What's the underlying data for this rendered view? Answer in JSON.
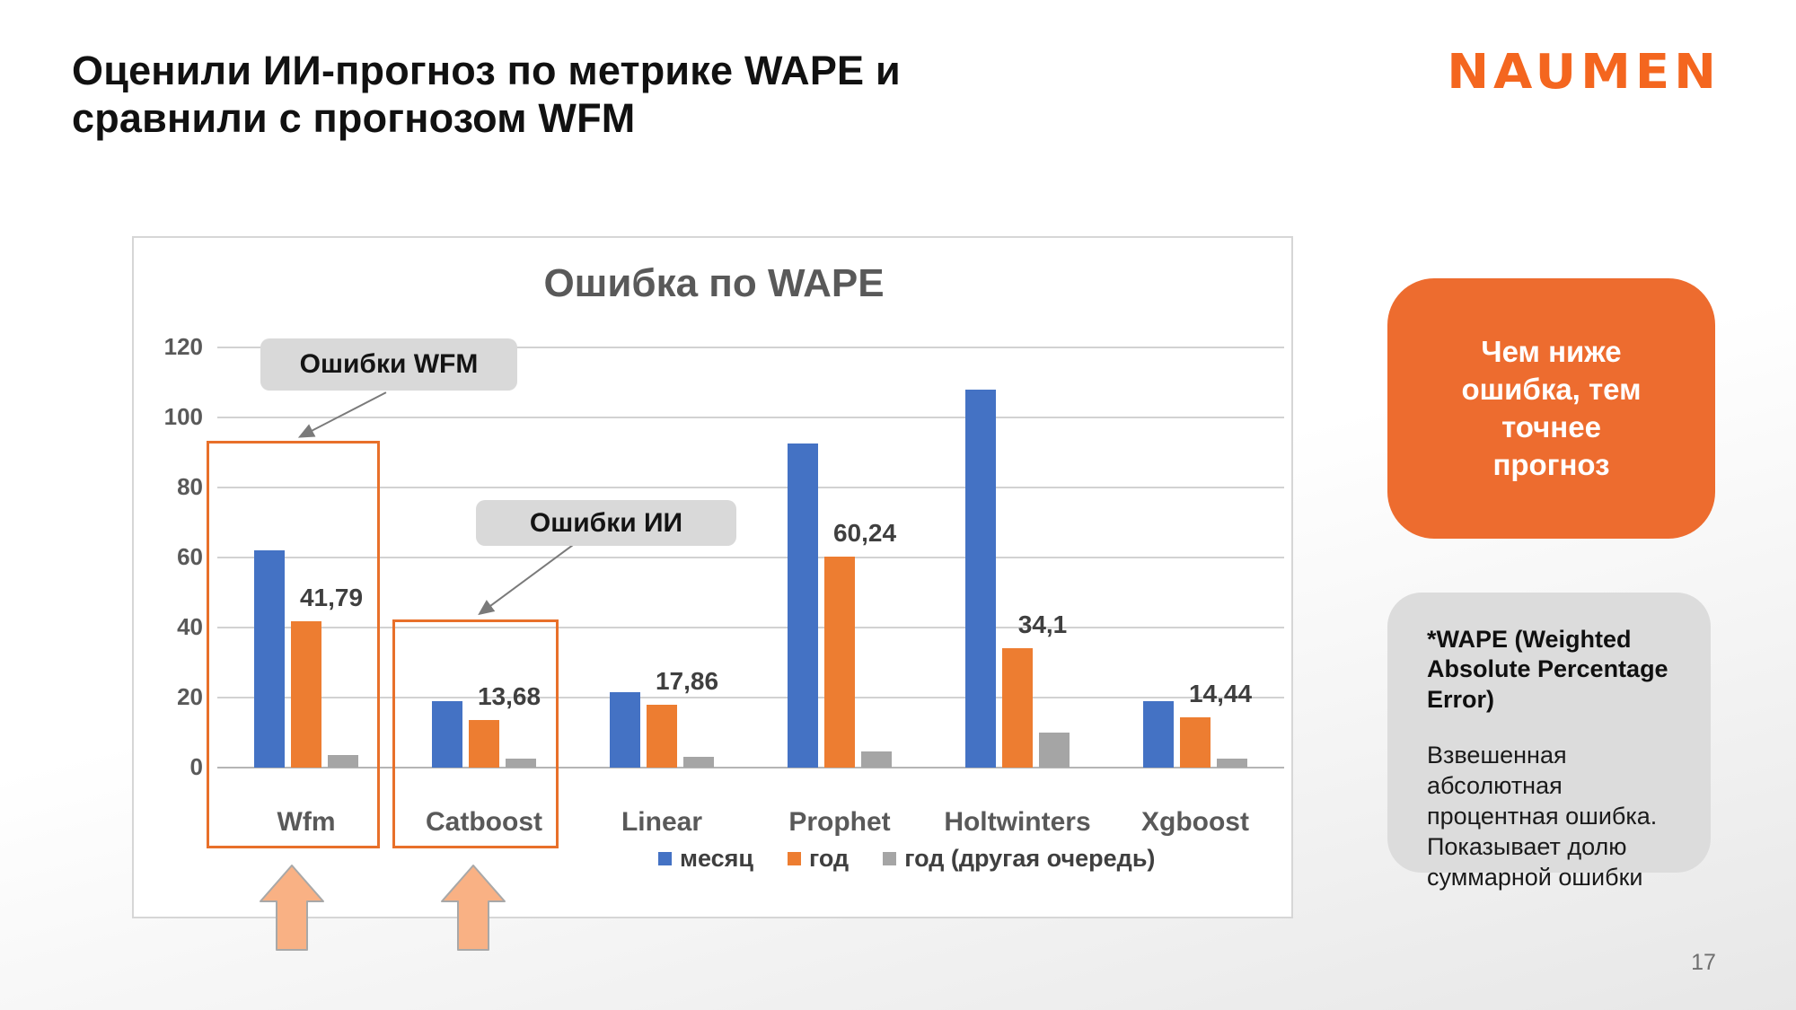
{
  "slide": {
    "title_lines": [
      "Оценили ИИ-прогноз по метрике WAPE и",
      "сравнили с прогнозом WFM"
    ],
    "brand": "NAUMEN",
    "page_number": "17"
  },
  "callouts": {
    "wfm": "Ошибки WFM",
    "ai": "Ошибки ИИ"
  },
  "notes": {
    "orange_box": "Чем ниже ошибка, тем точнее прогноз",
    "gray_box_title": "*WAPE (Weighted Absolute Percentage Error)",
    "gray_box_body": "Взвешенная абсолютная процентная ошибка. Показывает долю суммарной ошибки"
  },
  "colors": {
    "series_month": "#4472C4",
    "series_year": "#ED7D31",
    "series_year_other": "#A5A5A5",
    "highlight_border": "#E8702A",
    "accent_orange": "#ED6C2F",
    "brand_orange": "#F4661F"
  },
  "chart_data": {
    "type": "bar",
    "title": "Ошибка по WAPE",
    "categories": [
      "Wfm",
      "Catboost",
      "Linear",
      "Prophet",
      "Holtwinters",
      "Xgboost"
    ],
    "series": [
      {
        "name": "месяц",
        "color": "#4472C4",
        "values": [
          62,
          19,
          21.5,
          92.5,
          108,
          19
        ]
      },
      {
        "name": "год",
        "color": "#ED7D31",
        "values": [
          41.79,
          13.68,
          17.86,
          60.24,
          34.1,
          14.44
        ]
      },
      {
        "name": "год (другая очередь)",
        "color": "#A5A5A5",
        "values": [
          3.5,
          2.5,
          3,
          4.5,
          10,
          2.5
        ]
      }
    ],
    "data_labels": [
      "41,79",
      "13,68",
      "17,86",
      "60,24",
      "34,1",
      "14,44"
    ],
    "data_labels_series": "год",
    "ylim": [
      0,
      120
    ],
    "yticks": [
      0,
      20,
      40,
      60,
      80,
      100,
      120
    ],
    "grid": true,
    "legend_position": "bottom",
    "xlabel": "",
    "ylabel": ""
  }
}
